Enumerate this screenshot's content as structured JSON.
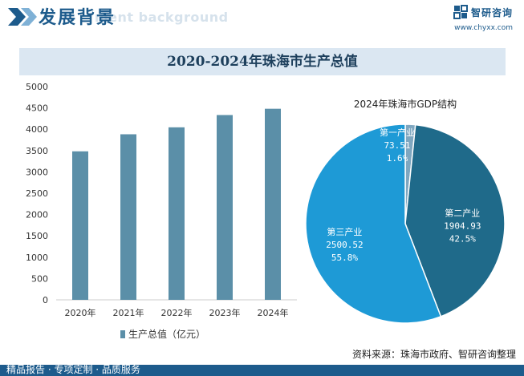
{
  "header": {
    "title": "发展背景",
    "ghost_text": "ment background",
    "brand": "智研咨询",
    "url": "www.chyxx.com"
  },
  "colors": {
    "brand_blue": "#1d5b8c",
    "bar": "#5b8fa8",
    "band_bg": "#dbe7f2",
    "pie_primary": "#7fa7c0",
    "pie_secondary": "#1f6a8a",
    "pie_tertiary": "#1e9ad6"
  },
  "footer": {
    "left": "精品报告 · 专项定制 · 品质服务",
    "source": "资料来源：珠海市政府、智研咨询整理"
  },
  "chart_data": [
    {
      "type": "bar",
      "title": "2020-2024年珠海市生产总值",
      "categories": [
        "2020年",
        "2021年",
        "2022年",
        "2023年",
        "2024年"
      ],
      "series": [
        {
          "name": "生产总值（亿元）",
          "values": [
            3482,
            3882,
            4045,
            4333,
            4480
          ]
        }
      ],
      "ylim": [
        0,
        5000
      ],
      "yticks": [
        0,
        500,
        1000,
        1500,
        2000,
        2500,
        3000,
        3500,
        4000,
        4500,
        5000
      ],
      "grid": false,
      "legend": "bottom"
    },
    {
      "type": "pie",
      "title": "2024年珠海市GDP结构",
      "slices": [
        {
          "name": "第一产业",
          "value": 73.51,
          "value_label": "73.51",
          "pct_label": "1.6%"
        },
        {
          "name": "第二产业",
          "value": 1904.93,
          "value_label": "1904.93",
          "pct_label": "42.5%"
        },
        {
          "name": "第三产业",
          "value": 2500.52,
          "value_label": "2500.52",
          "pct_label": "55.8%"
        }
      ]
    }
  ]
}
